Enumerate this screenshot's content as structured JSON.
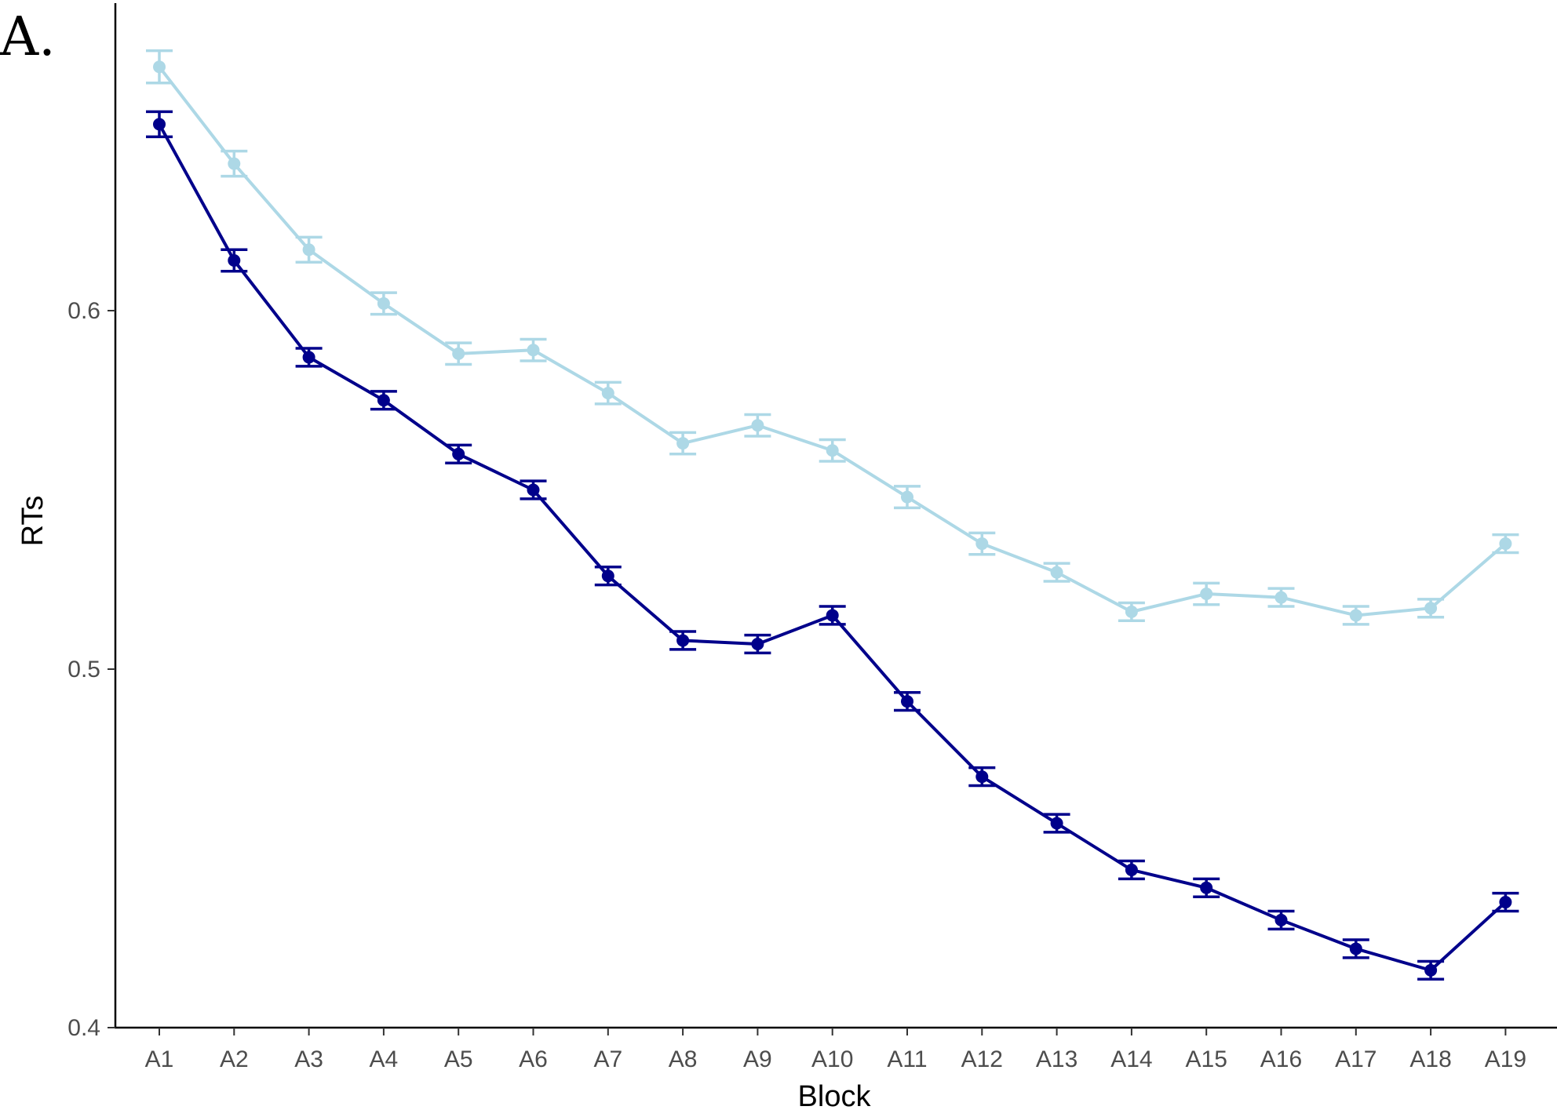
{
  "panel_label": "A.",
  "chart_data": {
    "type": "line",
    "xlabel": "Block",
    "ylabel": "RTs",
    "ylim": [
      0.4,
      0.685
    ],
    "yticks": [
      0.4,
      0.5,
      0.6
    ],
    "ytick_labels": [
      "0.4",
      "0.5",
      "0.6"
    ],
    "categories": [
      "A1",
      "A2",
      "A3",
      "A4",
      "A5",
      "A6",
      "A7",
      "A8",
      "A9",
      "A10",
      "A11",
      "A12",
      "A13",
      "A14",
      "A15",
      "A16",
      "A17",
      "A18",
      "A19"
    ],
    "grid": false,
    "legend": "none",
    "error_bars": true,
    "series": [
      {
        "color": "#add8e6",
        "values": [
          0.668,
          0.641,
          0.617,
          0.602,
          0.588,
          0.589,
          0.577,
          0.563,
          0.568,
          0.561,
          0.548,
          0.535,
          0.527,
          0.516,
          0.521,
          0.52,
          0.515,
          0.517,
          0.535
        ],
        "error": [
          0.0045,
          0.0035,
          0.0035,
          0.003,
          0.003,
          0.003,
          0.003,
          0.003,
          0.003,
          0.003,
          0.003,
          0.003,
          0.0025,
          0.0025,
          0.003,
          0.0025,
          0.0025,
          0.0025,
          0.0025
        ]
      },
      {
        "color": "#00008b",
        "values": [
          0.652,
          0.614,
          0.587,
          0.575,
          0.56,
          0.55,
          0.526,
          0.508,
          0.507,
          0.515,
          0.491,
          0.47,
          0.457,
          0.444,
          0.439,
          0.43,
          0.422,
          0.416,
          0.435
        ],
        "error": [
          0.0035,
          0.003,
          0.0025,
          0.0025,
          0.0025,
          0.0025,
          0.0025,
          0.0025,
          0.0025,
          0.0025,
          0.0025,
          0.0025,
          0.0025,
          0.0025,
          0.0025,
          0.0025,
          0.0025,
          0.0025,
          0.0025
        ]
      }
    ]
  }
}
